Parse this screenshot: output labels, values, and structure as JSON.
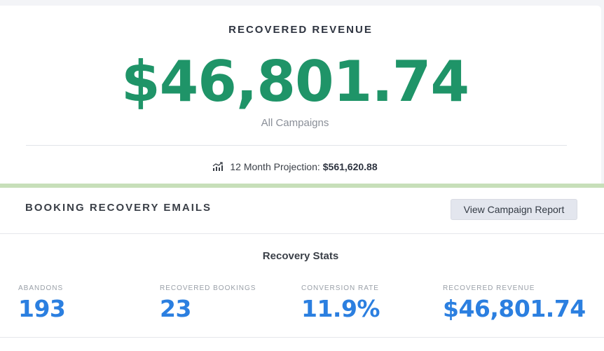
{
  "revenue_card": {
    "title": "RECOVERED REVENUE",
    "amount": "$46,801.74",
    "subtitle": "All Campaigns",
    "projection_label": "12 Month Projection:",
    "projection_value": "$561,620.88",
    "projection_icon": "bar-chart-trend-icon"
  },
  "booking_section": {
    "title": "BOOKING RECOVERY EMAILS",
    "report_button": "View Campaign Report",
    "stats_title": "Recovery Stats",
    "stats": [
      {
        "label": "ABANDONS",
        "value": "193"
      },
      {
        "label": "RECOVERED BOOKINGS",
        "value": "23"
      },
      {
        "label": "CONVERSION RATE",
        "value": "11.9%"
      },
      {
        "label": "RECOVERED REVENUE",
        "value": "$46,801.74"
      }
    ]
  },
  "colors": {
    "revenue_green": "#1f9468",
    "stat_blue": "#2b7fe0",
    "accent_bar": "#c7dfb9"
  }
}
